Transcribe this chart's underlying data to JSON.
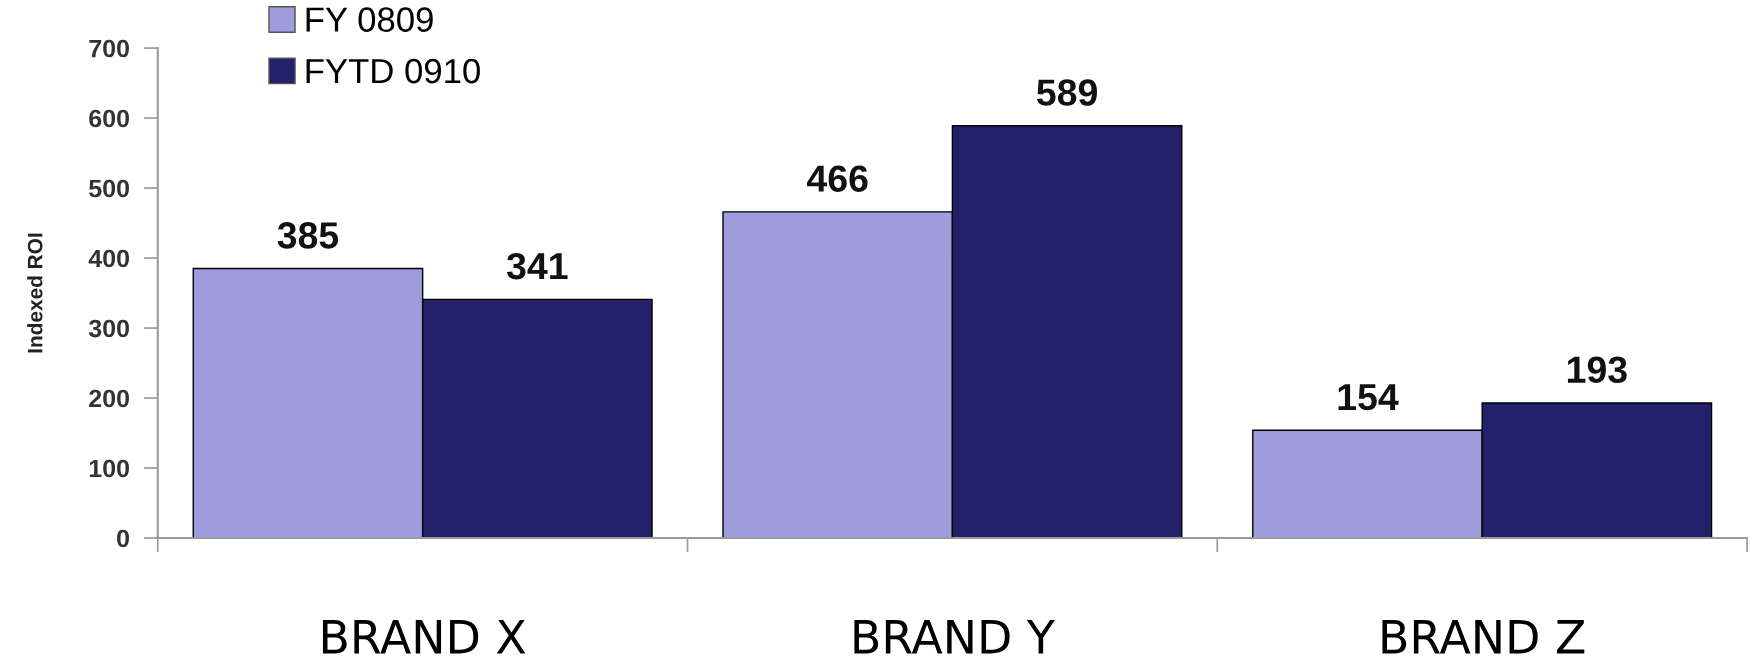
{
  "chart_data": {
    "type": "bar",
    "ylabel": "Indexed ROI",
    "categories": [
      "BRAND X",
      "BRAND Y",
      "BRAND Z"
    ],
    "series": [
      {
        "name": "FY 0809",
        "color": "#9e9cdc",
        "values": [
          385,
          466,
          154
        ]
      },
      {
        "name": "FYTD 0910",
        "color": "#22216a",
        "values": [
          341,
          589,
          193
        ]
      }
    ],
    "ylim": [
      0,
      700
    ],
    "yticks": [
      0,
      100,
      200,
      300,
      400,
      500,
      600,
      700
    ],
    "data_labels": true,
    "legend": "top left"
  }
}
